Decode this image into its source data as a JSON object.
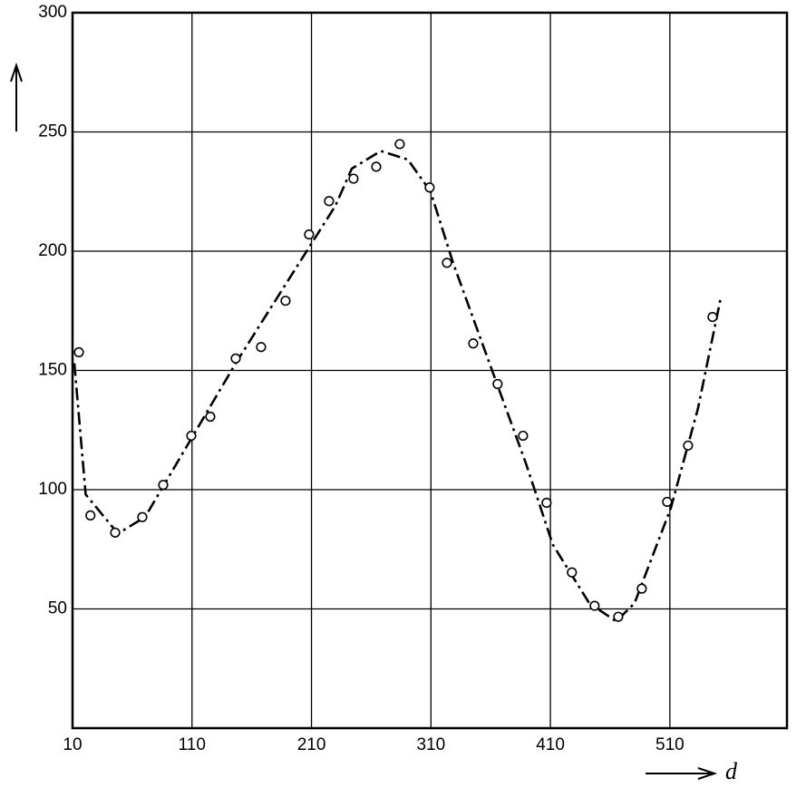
{
  "chart_data": {
    "type": "scatter",
    "x_label": "d",
    "xlim": [
      10,
      608
    ],
    "ylim": [
      0,
      300
    ],
    "xticks": [
      10,
      110,
      210,
      310,
      410,
      510
    ],
    "yticks": [
      50,
      100,
      150,
      200,
      250,
      300
    ],
    "grid": true,
    "color": "#000000",
    "points": {
      "x": [
        15.3,
        25,
        45.7,
        68.4,
        85.9,
        109.4,
        125.3,
        146.6,
        167.8,
        188.3,
        208,
        224.7,
        245.2,
        264.2,
        283.9,
        308.9,
        323.4,
        345.4,
        365.8,
        387.1,
        406.8,
        428,
        447,
        466.8,
        486.5,
        507.7,
        525.2,
        545.7
      ],
      "y": [
        157.6,
        89.2,
        82,
        88.5,
        102,
        122.6,
        130.6,
        155,
        159.8,
        179.2,
        207,
        221,
        230.4,
        235.4,
        244.9,
        226.7,
        195.1,
        161.3,
        144.3,
        122.6,
        94.5,
        65.3,
        51.3,
        46.7,
        58.5,
        94.9,
        118.5,
        172.4
      ]
    },
    "curve": {
      "x": [
        11.5,
        21,
        48,
        70.7,
        108.6,
        146.6,
        184.5,
        211,
        230,
        243.7,
        268,
        290.7,
        309.7,
        328.7,
        359,
        389.5,
        412,
        442.5,
        465,
        480.4,
        510.8,
        533.5,
        552.5
      ],
      "y": [
        153,
        98,
        81.6,
        88.5,
        120.7,
        153,
        183,
        204,
        219,
        234.6,
        242,
        238.4,
        225,
        194.8,
        153,
        111,
        77,
        52.4,
        44.8,
        52.4,
        92.3,
        134,
        180.3
      ]
    }
  }
}
